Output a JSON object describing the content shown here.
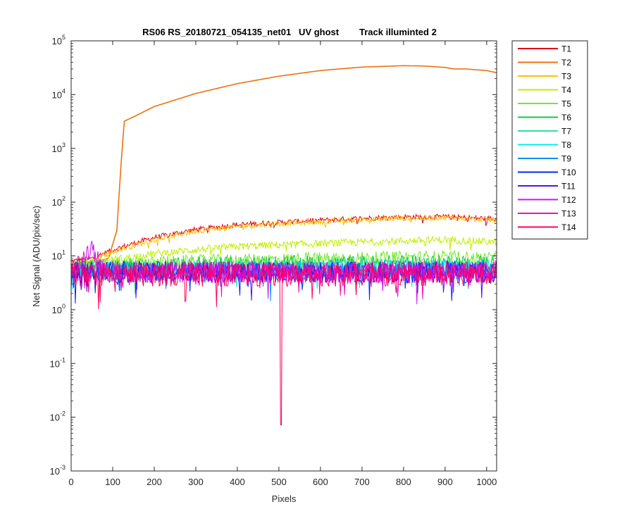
{
  "chart_data": {
    "type": "line",
    "title": "RS06 RS_20180721_054135_net01   UV ghost        Track illuminted 2",
    "xlabel": "Pixels",
    "ylabel": "Net Signal (ADU/pix/sec)",
    "xlim": [
      0,
      1024
    ],
    "ylim": [
      0.001,
      100000
    ],
    "yscale": "log",
    "grid": false,
    "legend_position": "outside-top-right",
    "x_ticks": [
      "0",
      "100",
      "200",
      "300",
      "400",
      "500",
      "600",
      "700",
      "800",
      "900",
      "1000"
    ],
    "x_tick_values": [
      0,
      100,
      200,
      300,
      400,
      500,
      600,
      700,
      800,
      900,
      1000
    ],
    "y_ticks": [
      {
        "value": 0.001,
        "base": "10",
        "exp": "-3"
      },
      {
        "value": 0.01,
        "base": "10",
        "exp": "-2"
      },
      {
        "value": 0.1,
        "base": "10",
        "exp": "-1"
      },
      {
        "value": 1,
        "base": "10",
        "exp": "0"
      },
      {
        "value": 10,
        "base": "10",
        "exp": "1"
      },
      {
        "value": 100,
        "base": "10",
        "exp": "2"
      },
      {
        "value": 1000,
        "base": "10",
        "exp": "3"
      },
      {
        "value": 10000,
        "base": "10",
        "exp": "4"
      },
      {
        "value": 100000,
        "base": "10",
        "exp": "5"
      }
    ],
    "series": [
      {
        "name": "T1",
        "color": "#e0001a",
        "points": [
          [
            0,
            8
          ],
          [
            50,
            9
          ],
          [
            100,
            13
          ],
          [
            200,
            22
          ],
          [
            300,
            31
          ],
          [
            400,
            38
          ],
          [
            500,
            42
          ],
          [
            600,
            46
          ],
          [
            700,
            50
          ],
          [
            800,
            53
          ],
          [
            900,
            53
          ],
          [
            1024,
            49
          ]
        ],
        "noise": 0.05
      },
      {
        "name": "T2",
        "color": "#f07010",
        "points": [
          [
            0,
            7
          ],
          [
            50,
            7.5
          ],
          [
            90,
            9
          ],
          [
            110,
            30
          ],
          [
            120,
            500
          ],
          [
            128,
            3200
          ],
          [
            160,
            4200
          ],
          [
            200,
            6000
          ],
          [
            300,
            10500
          ],
          [
            400,
            16000
          ],
          [
            500,
            22000
          ],
          [
            600,
            28000
          ],
          [
            700,
            32500
          ],
          [
            800,
            34500
          ],
          [
            850,
            34000
          ],
          [
            900,
            32000
          ],
          [
            920,
            30000
          ],
          [
            950,
            30000
          ],
          [
            1000,
            28000
          ],
          [
            1024,
            25500
          ]
        ],
        "noise": 0
      },
      {
        "name": "T3",
        "color": "#ffc000",
        "points": [
          [
            0,
            7
          ],
          [
            50,
            8
          ],
          [
            100,
            12
          ],
          [
            200,
            20
          ],
          [
            300,
            29
          ],
          [
            400,
            35
          ],
          [
            500,
            40
          ],
          [
            600,
            43
          ],
          [
            700,
            47
          ],
          [
            800,
            50
          ],
          [
            900,
            52
          ],
          [
            1024,
            46
          ]
        ],
        "noise": 0.05
      },
      {
        "name": "T4",
        "color": "#c0ee00",
        "points": [
          [
            0,
            7
          ],
          [
            100,
            8.5
          ],
          [
            200,
            11
          ],
          [
            300,
            13
          ],
          [
            400,
            15
          ],
          [
            500,
            16
          ],
          [
            600,
            17
          ],
          [
            700,
            18
          ],
          [
            800,
            19
          ],
          [
            900,
            20
          ],
          [
            1024,
            18
          ]
        ],
        "noise": 0.07
      },
      {
        "name": "T5",
        "color": "#70e830",
        "points": [
          [
            0,
            6.5
          ],
          [
            300,
            8
          ],
          [
            600,
            9
          ],
          [
            900,
            9.5
          ],
          [
            1024,
            9
          ]
        ],
        "noise": 0.12
      },
      {
        "name": "T6",
        "color": "#10c840",
        "points": [
          [
            0,
            6
          ],
          [
            300,
            7
          ],
          [
            600,
            7.5
          ],
          [
            1024,
            7.5
          ]
        ],
        "noise": 0.14
      },
      {
        "name": "T7",
        "color": "#30e0a8",
        "points": [
          [
            0,
            5.5
          ],
          [
            1024,
            6.5
          ]
        ],
        "noise": 0.16
      },
      {
        "name": "T8",
        "color": "#00f0f0",
        "points": [
          [
            0,
            5.5
          ],
          [
            1024,
            6
          ]
        ],
        "noise": 0.16
      },
      {
        "name": "T9",
        "color": "#0090f0",
        "points": [
          [
            0,
            5
          ],
          [
            1024,
            5.5
          ]
        ],
        "noise": 0.18
      },
      {
        "name": "T10",
        "color": "#0028f0",
        "points": [
          [
            0,
            5
          ],
          [
            1024,
            5
          ]
        ],
        "noise": 0.2
      },
      {
        "name": "T11",
        "color": "#5010f0",
        "points": [
          [
            0,
            5
          ],
          [
            1024,
            5
          ]
        ],
        "noise": 0.2
      },
      {
        "name": "T12",
        "color": "#d010f0",
        "points": [
          [
            0,
            5
          ],
          [
            30,
            9
          ],
          [
            45,
            14
          ],
          [
            60,
            9
          ],
          [
            80,
            5
          ],
          [
            1024,
            5
          ]
        ],
        "noise": 0.2
      },
      {
        "name": "T13",
        "color": "#f010b0",
        "points": [
          [
            0,
            5
          ],
          [
            1024,
            5
          ]
        ],
        "noise": 0.2
      },
      {
        "name": "T14",
        "color": "#ff0060",
        "points": [
          [
            0,
            4.5
          ],
          [
            1024,
            4.5
          ]
        ],
        "noise": 0.22,
        "dip": {
          "x": 505,
          "y": 0.0072
        }
      }
    ]
  }
}
